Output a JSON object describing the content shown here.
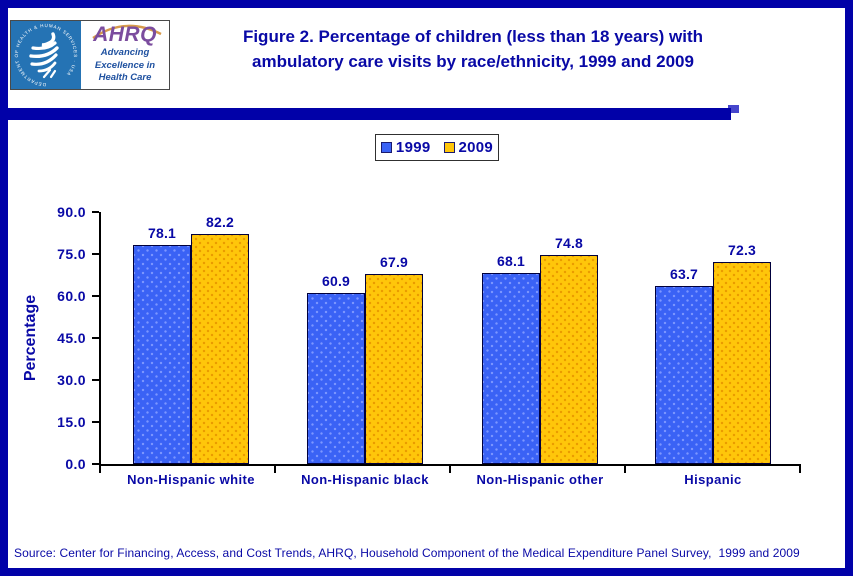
{
  "header": {
    "title_line1": "Figure 2. Percentage of children (less than 18 years) with",
    "title_line2": "ambulatory care visits by race/ethnicity, 1999 and 2009",
    "logo": {
      "seal_text": "DEPARTMENT OF HEALTH & HUMAN SERVICES · USA",
      "ahrq_acronym": "AHRQ",
      "tagline_line1": "Advancing",
      "tagline_line2": "Excellence in",
      "tagline_line3": "Health Care"
    }
  },
  "legend": {
    "items": [
      {
        "label": "1999",
        "color": "#3A62F5"
      },
      {
        "label": "2009",
        "color": "#FFC60A"
      }
    ]
  },
  "chart_data": {
    "type": "bar",
    "title": "Figure 2. Percentage of children (less than 18 years) with ambulatory care visits by race/ethnicity, 1999 and 2009",
    "categories": [
      "Non-Hispanic white",
      "Non-Hispanic black",
      "Non-Hispanic other",
      "Hispanic"
    ],
    "series": [
      {
        "name": "1999",
        "color": "#3A62F5",
        "dot_color": "#7D97FF",
        "values": [
          78.1,
          60.9,
          68.1,
          63.7
        ]
      },
      {
        "name": "2009",
        "color": "#FFC60A",
        "dot_color": "#E99A00",
        "values": [
          82.2,
          67.9,
          74.8,
          72.3
        ]
      }
    ],
    "xlabel": "",
    "ylabel": "Percentage",
    "ylim": [
      0,
      90
    ],
    "ytick_step": 15,
    "ytick_labels": [
      "0.0",
      "15.0",
      "30.0",
      "45.0",
      "60.0",
      "75.0",
      "90.0"
    ],
    "grid": false,
    "value_labels": true,
    "legend_position": "top-center"
  },
  "source": "Source: Center for Financing, Access, and Cost Trends, AHRQ, Household Component of the Medical Expenditure Panel Survey,  1999 and 2009",
  "colors": {
    "frame_navy": "#0101A8",
    "text_navy": "#0909A6",
    "axis_black": "#000000",
    "seal_blue": "#2573B4",
    "ahrq_purple": "#7B4C9E",
    "tagline_blue": "#1F51A0"
  }
}
